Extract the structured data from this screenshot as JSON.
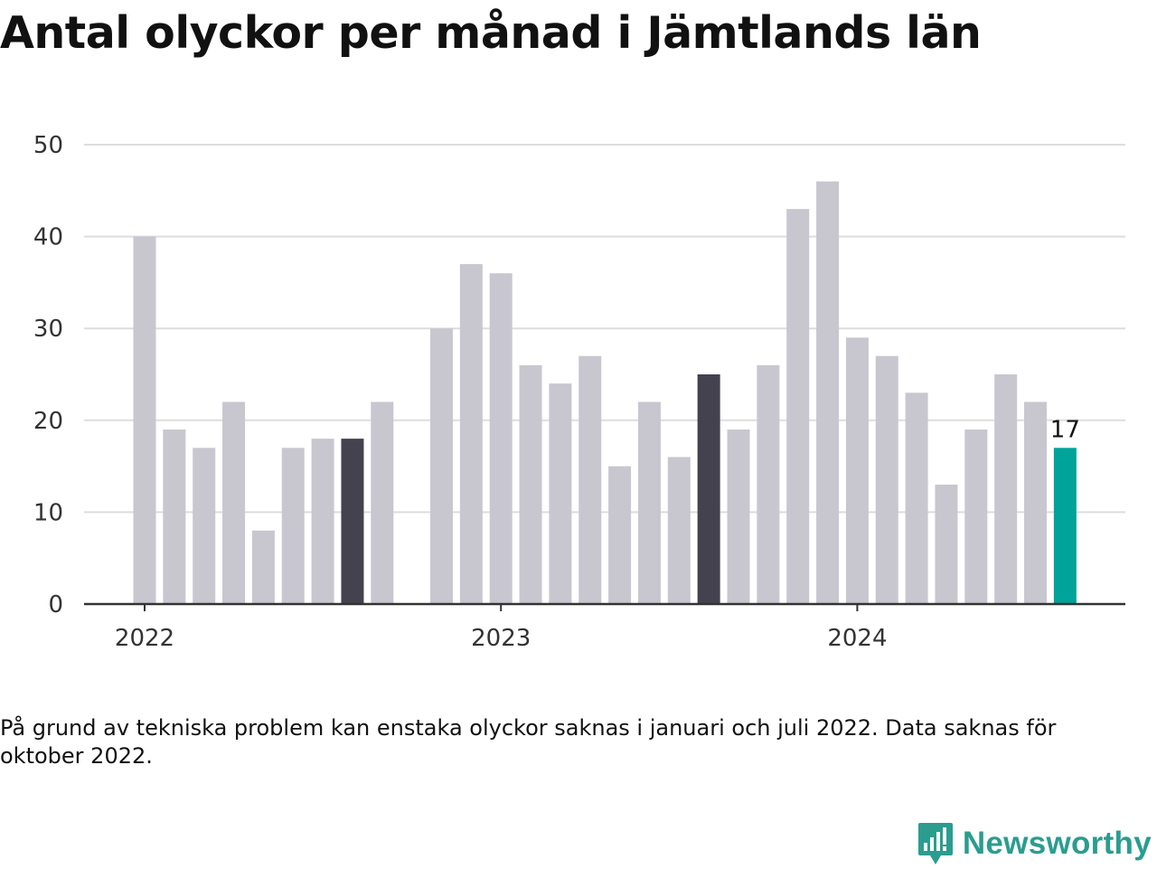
{
  "title": "Antal olyckor per månad i Jämtlands län",
  "note": "På grund av tekniska problem kan enstaka olyckor saknas i januari och juli 2022. Data saknas för oktober 2022.",
  "brand": {
    "name": "Newsworthy",
    "icon": "newsworthy-logo-icon",
    "color": "#2a9d8f"
  },
  "colors": {
    "normal": "#c8c7cf",
    "highlight": "#43424e",
    "latest": "#00a39a",
    "grid": "#dddddd",
    "axis": "#333333"
  },
  "chart_data": {
    "type": "bar",
    "ylim": [
      0,
      50
    ],
    "yticks": [
      0,
      10,
      20,
      30,
      40,
      50
    ],
    "xtick_labels": [
      {
        "label": "2022",
        "index": 0
      },
      {
        "label": "2023",
        "index": 12
      },
      {
        "label": "2024",
        "index": 24
      }
    ],
    "grid": true,
    "categories": [
      "2022-01",
      "2022-02",
      "2022-03",
      "2022-04",
      "2022-05",
      "2022-06",
      "2022-07",
      "2022-08",
      "2022-09",
      "2022-10",
      "2022-11",
      "2022-12",
      "2023-01",
      "2023-02",
      "2023-03",
      "2023-04",
      "2023-05",
      "2023-06",
      "2023-07",
      "2023-08",
      "2023-09",
      "2023-10",
      "2023-11",
      "2023-12",
      "2024-01",
      "2024-02",
      "2024-03",
      "2024-04",
      "2024-05",
      "2024-06",
      "2024-07",
      "2024-08",
      "2024-09"
    ],
    "values": [
      40,
      19,
      17,
      22,
      8,
      17,
      18,
      18,
      22,
      null,
      30,
      37,
      36,
      26,
      24,
      27,
      15,
      22,
      16,
      25,
      19,
      26,
      43,
      46,
      29,
      27,
      23,
      13,
      19,
      25,
      22,
      17,
      null
    ],
    "highlight": [
      "2022-08",
      "2023-08"
    ],
    "latest": "2024-08",
    "data_labels": [
      {
        "category": "2024-08",
        "text": "17"
      }
    ]
  }
}
